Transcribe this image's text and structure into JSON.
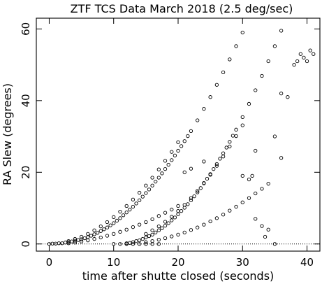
{
  "chart_data": {
    "type": "scatter",
    "title": "ZTF TCS Data March 2018 (2.5 deg/sec)",
    "xlabel": "time after shutte closed (seconds)",
    "ylabel": "RA Slew (degrees)",
    "xlim": [
      -2,
      42
    ],
    "ylim": [
      -2,
      63
    ],
    "xticks": [
      0,
      10,
      20,
      30,
      40
    ],
    "yticks": [
      0,
      20,
      40,
      60
    ],
    "grid": false,
    "legend": "none",
    "reference_line": {
      "y": 0,
      "style": "dotted"
    },
    "marker": "open-circle",
    "colors": {
      "marker": "#000000",
      "axes": "#000000",
      "background": "#ffffff"
    },
    "series": [
      {
        "points": [
          [
            0,
            0
          ],
          [
            0.5,
            0.1
          ],
          [
            1,
            0.1
          ],
          [
            1.5,
            0.2
          ],
          [
            2,
            0.2
          ],
          [
            2.5,
            0.4
          ],
          [
            3,
            0.5
          ],
          [
            3.5,
            0.7
          ],
          [
            4,
            0.9
          ],
          [
            4.5,
            1.1
          ],
          [
            5,
            1.3
          ],
          [
            5.5,
            1.6
          ],
          [
            6,
            1.9
          ],
          [
            6.5,
            2.3
          ],
          [
            7,
            2.7
          ],
          [
            7.5,
            3.1
          ],
          [
            8,
            3.6
          ],
          [
            8.5,
            4.1
          ],
          [
            9,
            4.6
          ],
          [
            9.5,
            5.2
          ],
          [
            10,
            5.8
          ],
          [
            10.5,
            6.5
          ],
          [
            11,
            7.2
          ],
          [
            11.5,
            8
          ],
          [
            12,
            8.8
          ],
          [
            12.5,
            9.6
          ],
          [
            13,
            10.4
          ],
          [
            13.5,
            11.3
          ],
          [
            14,
            12.2
          ],
          [
            14.5,
            13.2
          ],
          [
            15,
            14.2
          ],
          [
            15.5,
            15.2
          ],
          [
            16,
            16.3
          ],
          [
            16.5,
            17.4
          ],
          [
            17,
            18.5
          ],
          [
            17.5,
            19.7
          ],
          [
            18,
            20.9
          ],
          [
            18.5,
            22.1
          ],
          [
            19,
            23.4
          ],
          [
            19.5,
            24.7
          ],
          [
            20,
            26
          ],
          [
            20.5,
            27.3
          ],
          [
            21,
            28.7
          ],
          [
            21.5,
            30.1
          ],
          [
            22,
            31.5
          ],
          [
            23,
            34.5
          ],
          [
            24,
            37.7
          ],
          [
            25,
            41
          ],
          [
            26,
            44.4
          ],
          [
            27,
            47.9
          ],
          [
            28,
            51.5
          ],
          [
            29,
            55.2
          ],
          [
            30,
            59
          ],
          [
            3,
            0.2
          ],
          [
            3,
            0.8
          ],
          [
            4,
            0.4
          ],
          [
            4,
            1.4
          ],
          [
            5,
            0.7
          ],
          [
            5,
            2
          ],
          [
            6,
            1
          ],
          [
            6,
            2.8
          ],
          [
            7,
            1.4
          ],
          [
            7,
            3.8
          ],
          [
            8,
            1.8
          ],
          [
            8,
            4.9
          ],
          [
            9,
            2.3
          ],
          [
            9,
            6.1
          ],
          [
            10,
            2.8
          ],
          [
            10,
            7.5
          ],
          [
            11,
            3.4
          ],
          [
            11,
            9
          ],
          [
            12,
            4
          ],
          [
            12,
            10.6
          ],
          [
            13,
            4.7
          ],
          [
            13,
            12.4
          ],
          [
            14,
            5.4
          ],
          [
            14,
            14.3
          ],
          [
            15,
            6.1
          ],
          [
            15,
            16.3
          ],
          [
            16,
            6.9
          ],
          [
            16,
            18.5
          ],
          [
            17,
            7.8
          ],
          [
            17,
            20.8
          ],
          [
            18,
            8.7
          ],
          [
            18,
            23.2
          ],
          [
            19,
            9.6
          ],
          [
            19,
            25.7
          ],
          [
            20,
            10.6
          ],
          [
            20,
            28.4
          ]
        ]
      },
      {
        "points": [
          [
            10,
            0
          ],
          [
            11,
            0
          ],
          [
            12,
            0
          ],
          [
            13,
            0
          ],
          [
            14,
            0
          ],
          [
            15,
            0
          ],
          [
            16,
            0
          ],
          [
            17,
            0
          ],
          [
            12,
            0.2
          ],
          [
            12.5,
            0.3
          ],
          [
            13,
            0.5
          ],
          [
            13.5,
            0.8
          ],
          [
            14,
            1
          ],
          [
            14.5,
            1.4
          ],
          [
            15,
            1.8
          ],
          [
            15.5,
            2.2
          ],
          [
            16,
            2.6
          ],
          [
            16.5,
            3.2
          ],
          [
            17,
            3.8
          ],
          [
            17.5,
            4.4
          ],
          [
            18,
            5.1
          ],
          [
            18.5,
            5.8
          ],
          [
            19,
            6.6
          ],
          [
            19.5,
            7.4
          ],
          [
            20,
            8.3
          ],
          [
            20.5,
            9.2
          ],
          [
            21,
            10.1
          ],
          [
            21.5,
            11.1
          ],
          [
            22,
            12.2
          ],
          [
            22.5,
            13.3
          ],
          [
            23,
            14.4
          ],
          [
            23.5,
            15.6
          ],
          [
            24,
            16.9
          ],
          [
            24.5,
            18.2
          ],
          [
            25,
            19.5
          ],
          [
            25.5,
            20.9
          ],
          [
            26,
            22.3
          ],
          [
            26.5,
            23.8
          ],
          [
            27,
            25.3
          ],
          [
            27.5,
            26.9
          ],
          [
            28,
            28.5
          ],
          [
            28.5,
            30.2
          ],
          [
            29,
            31.9
          ],
          [
            30,
            35.4
          ],
          [
            31,
            39.1
          ],
          [
            32,
            42.9
          ],
          [
            33,
            46.9
          ],
          [
            34,
            51
          ],
          [
            35,
            55.2
          ],
          [
            36,
            59.5
          ],
          [
            15,
            0.5
          ],
          [
            15,
            2.8
          ],
          [
            16,
            0.8
          ],
          [
            16,
            3.8
          ],
          [
            17,
            1.2
          ],
          [
            17,
            4.9
          ],
          [
            18,
            1.6
          ],
          [
            18,
            6.2
          ],
          [
            19,
            2.1
          ],
          [
            19,
            7.6
          ],
          [
            20,
            2.6
          ],
          [
            20,
            9.2
          ],
          [
            21,
            3.2
          ],
          [
            21,
            10.9
          ],
          [
            22,
            3.9
          ],
          [
            22,
            12.8
          ],
          [
            23,
            4.6
          ],
          [
            23,
            14.8
          ],
          [
            24,
            5.4
          ],
          [
            24,
            17
          ],
          [
            25,
            6.3
          ],
          [
            25,
            19.3
          ],
          [
            26,
            7.2
          ],
          [
            26,
            21.8
          ],
          [
            27,
            8.2
          ],
          [
            27,
            24.4
          ],
          [
            28,
            9.3
          ],
          [
            28,
            27.2
          ],
          [
            29,
            10.4
          ],
          [
            29,
            30.1
          ],
          [
            30,
            11.6
          ],
          [
            30,
            33.1
          ],
          [
            31,
            12.8
          ],
          [
            32,
            14.1
          ],
          [
            33,
            15.4
          ],
          [
            34,
            16.8
          ]
        ]
      },
      {
        "points": [
          [
            21,
            20
          ],
          [
            22,
            21
          ],
          [
            24,
            23
          ],
          [
            30,
            19
          ],
          [
            31,
            18
          ],
          [
            31.5,
            19
          ],
          [
            32,
            26
          ],
          [
            32,
            7
          ],
          [
            33,
            5
          ],
          [
            33.5,
            2
          ],
          [
            34,
            4
          ],
          [
            35,
            0
          ],
          [
            35,
            30
          ],
          [
            36,
            24
          ],
          [
            36,
            42
          ],
          [
            37,
            41
          ],
          [
            38,
            50
          ],
          [
            38.5,
            51
          ],
          [
            39,
            53
          ],
          [
            39.5,
            52
          ],
          [
            40,
            51
          ],
          [
            40.5,
            54
          ],
          [
            41,
            53
          ]
        ]
      }
    ]
  }
}
